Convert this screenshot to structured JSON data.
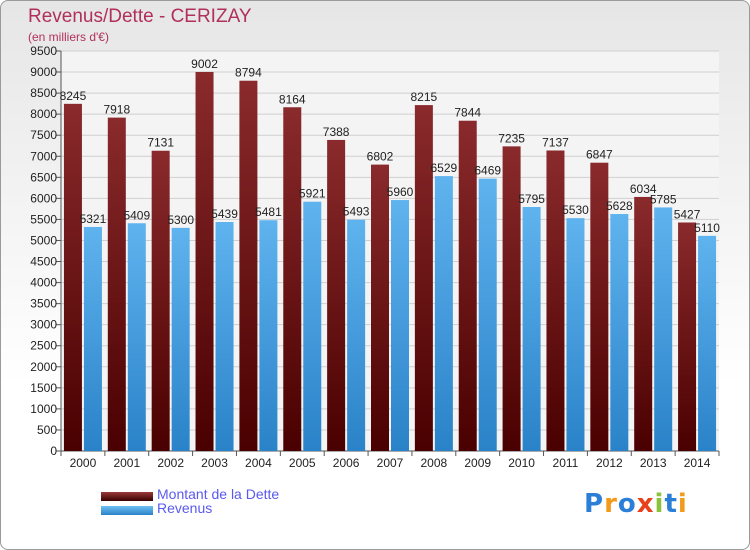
{
  "colors": {
    "dette": "#7b1c1c",
    "revenus": "#3a98dd",
    "title": "#b0305a",
    "legend_text": "#5a5aee"
  },
  "chart_data": {
    "type": "bar",
    "title": "Revenus/Dette - CERIZAY",
    "subtitle": "(en milliers d'€)",
    "categories": [
      "2000",
      "2001",
      "2002",
      "2003",
      "2004",
      "2005",
      "2006",
      "2007",
      "2008",
      "2009",
      "2010",
      "2011",
      "2012",
      "2013",
      "2014"
    ],
    "series": [
      {
        "name": "Montant de la Dette",
        "values": [
          8245,
          7918,
          7131,
          9002,
          8794,
          8164,
          7388,
          6802,
          8215,
          7844,
          7235,
          7137,
          6847,
          6034,
          5427
        ]
      },
      {
        "name": "Revenus",
        "values": [
          5321,
          5409,
          5300,
          5439,
          5481,
          5921,
          5493,
          5960,
          6529,
          6469,
          5795,
          5530,
          5628,
          5785,
          5110
        ]
      }
    ],
    "ylim": [
      0,
      9500
    ],
    "yticks": [
      0,
      500,
      1000,
      1500,
      2000,
      2500,
      3000,
      3500,
      4000,
      4500,
      5000,
      5500,
      6000,
      6500,
      7000,
      7500,
      8000,
      8500,
      9000,
      9500
    ],
    "grid": true,
    "legend_position": "bottom-left"
  },
  "logo_text": "Proxiti"
}
